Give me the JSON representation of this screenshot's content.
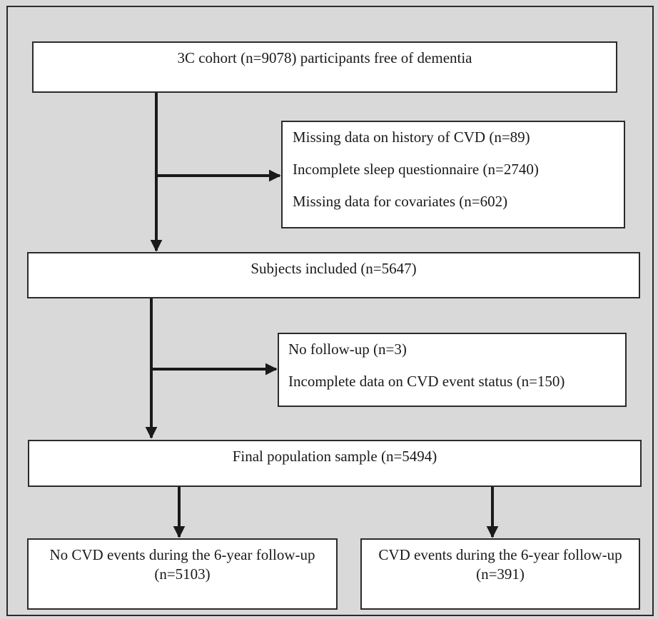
{
  "flowchart": {
    "cohort": "3C cohort (n=9078) participants free of dementia",
    "exclusions_1": [
      "Missing data on history of CVD (n=89)",
      "Incomplete sleep questionnaire (n=2740)",
      "Missing data for covariates (n=602)"
    ],
    "included": "Subjects included (n=5647)",
    "exclusions_2": [
      "No follow-up (n=3)",
      "Incomplete data on CVD event status (n=150)"
    ],
    "final_sample": "Final population sample (n=5494)",
    "outcome_no_events": {
      "line1": "No CVD events during the 6-year follow-up",
      "line2": "(n=5103)"
    },
    "outcome_events": {
      "line1": "CVD events during the 6-year follow-up",
      "line2": "(n=391)"
    }
  },
  "colors": {
    "background": "#d9d9d9",
    "box_fill": "#ffffff",
    "stroke": "#1a1a1a"
  }
}
